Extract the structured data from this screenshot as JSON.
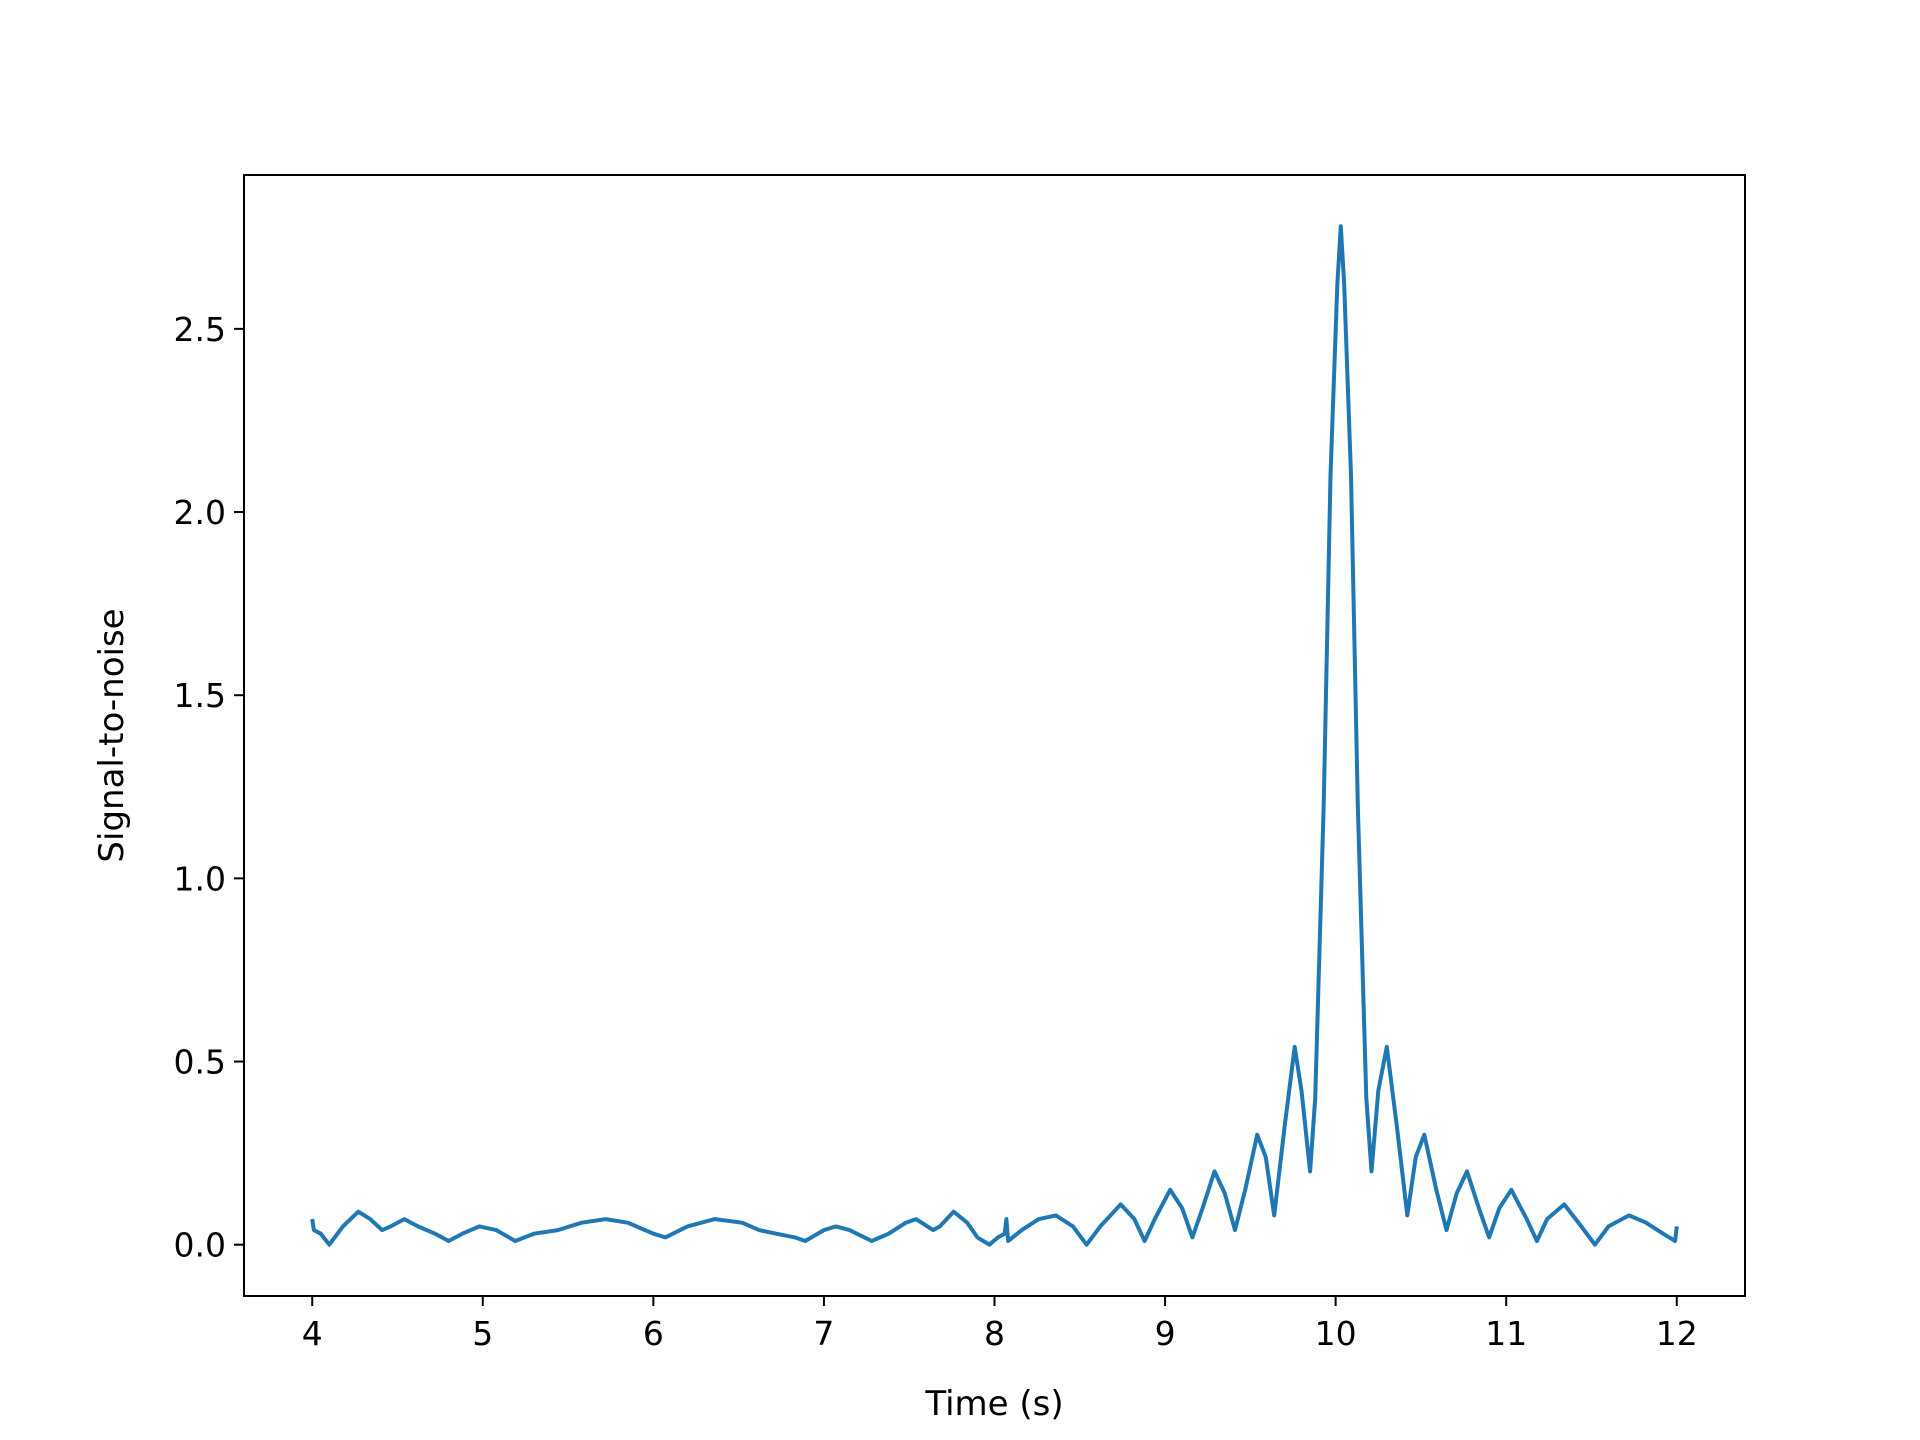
{
  "chart_data": {
    "type": "line",
    "title": "",
    "xlabel": "Time (s)",
    "ylabel": "Signal-to-noise",
    "xlim": [
      3.6,
      12.4
    ],
    "ylim": [
      -0.14,
      2.92
    ],
    "xticks": [
      4,
      5,
      6,
      7,
      8,
      9,
      10,
      11,
      12
    ],
    "xtick_labels": [
      "4",
      "5",
      "6",
      "7",
      "8",
      "9",
      "10",
      "11",
      "12"
    ],
    "yticks": [
      0.0,
      0.5,
      1.0,
      1.5,
      2.0,
      2.5
    ],
    "ytick_labels": [
      "0.0",
      "0.5",
      "1.0",
      "1.5",
      "2.0",
      "2.5"
    ],
    "grid": false,
    "legend": "none",
    "colors": {
      "line": "#1f77b4",
      "axes": "#000000",
      "background": "#ffffff"
    },
    "series": [
      {
        "points": [
          [
            4.0,
            0.07
          ],
          [
            4.01,
            0.04
          ],
          [
            4.05,
            0.03
          ],
          [
            4.1,
            0.0
          ],
          [
            4.18,
            0.05
          ],
          [
            4.27,
            0.09
          ],
          [
            4.34,
            0.07
          ],
          [
            4.41,
            0.04
          ],
          [
            4.46,
            0.05
          ],
          [
            4.54,
            0.07
          ],
          [
            4.62,
            0.05
          ],
          [
            4.72,
            0.03
          ],
          [
            4.8,
            0.01
          ],
          [
            4.88,
            0.03
          ],
          [
            4.98,
            0.05
          ],
          [
            5.08,
            0.04
          ],
          [
            5.19,
            0.01
          ],
          [
            5.3,
            0.03
          ],
          [
            5.44,
            0.04
          ],
          [
            5.58,
            0.06
          ],
          [
            5.72,
            0.07
          ],
          [
            5.85,
            0.06
          ],
          [
            6.0,
            0.03
          ],
          [
            6.07,
            0.02
          ],
          [
            6.2,
            0.05
          ],
          [
            6.36,
            0.07
          ],
          [
            6.52,
            0.06
          ],
          [
            6.62,
            0.04
          ],
          [
            6.72,
            0.03
          ],
          [
            6.83,
            0.02
          ],
          [
            6.89,
            0.01
          ],
          [
            7.0,
            0.04
          ],
          [
            7.07,
            0.05
          ],
          [
            7.15,
            0.04
          ],
          [
            7.28,
            0.01
          ],
          [
            7.38,
            0.03
          ],
          [
            7.48,
            0.06
          ],
          [
            7.54,
            0.07
          ],
          [
            7.64,
            0.04
          ],
          [
            7.68,
            0.05
          ],
          [
            7.76,
            0.09
          ],
          [
            7.84,
            0.06
          ],
          [
            7.9,
            0.02
          ],
          [
            7.97,
            0.0
          ],
          [
            8.02,
            0.02
          ],
          [
            8.06,
            0.03
          ],
          [
            8.07,
            0.07
          ],
          [
            8.08,
            0.01
          ],
          [
            8.16,
            0.04
          ],
          [
            8.26,
            0.07
          ],
          [
            8.36,
            0.08
          ],
          [
            8.46,
            0.05
          ],
          [
            8.54,
            0.0
          ],
          [
            8.62,
            0.05
          ],
          [
            8.74,
            0.11
          ],
          [
            8.82,
            0.07
          ],
          [
            8.88,
            0.01
          ],
          [
            8.94,
            0.07
          ],
          [
            9.03,
            0.15
          ],
          [
            9.1,
            0.1
          ],
          [
            9.16,
            0.02
          ],
          [
            9.22,
            0.1
          ],
          [
            9.29,
            0.2
          ],
          [
            9.35,
            0.14
          ],
          [
            9.41,
            0.04
          ],
          [
            9.47,
            0.15
          ],
          [
            9.54,
            0.3
          ],
          [
            9.59,
            0.24
          ],
          [
            9.64,
            0.08
          ],
          [
            9.7,
            0.32
          ],
          [
            9.76,
            0.54
          ],
          [
            9.8,
            0.42
          ],
          [
            9.85,
            0.2
          ],
          [
            9.88,
            0.4
          ],
          [
            9.93,
            1.2
          ],
          [
            9.97,
            2.1
          ],
          [
            10.01,
            2.62
          ],
          [
            10.03,
            2.78
          ],
          [
            10.05,
            2.62
          ],
          [
            10.09,
            2.1
          ],
          [
            10.13,
            1.2
          ],
          [
            10.18,
            0.4
          ],
          [
            10.21,
            0.2
          ],
          [
            10.25,
            0.42
          ],
          [
            10.3,
            0.54
          ],
          [
            10.36,
            0.32
          ],
          [
            10.42,
            0.08
          ],
          [
            10.47,
            0.24
          ],
          [
            10.52,
            0.3
          ],
          [
            10.59,
            0.15
          ],
          [
            10.65,
            0.04
          ],
          [
            10.71,
            0.14
          ],
          [
            10.77,
            0.2
          ],
          [
            10.84,
            0.1
          ],
          [
            10.9,
            0.02
          ],
          [
            10.96,
            0.1
          ],
          [
            11.03,
            0.15
          ],
          [
            11.12,
            0.07
          ],
          [
            11.18,
            0.01
          ],
          [
            11.24,
            0.07
          ],
          [
            11.34,
            0.11
          ],
          [
            11.44,
            0.05
          ],
          [
            11.52,
            0.0
          ],
          [
            11.6,
            0.05
          ],
          [
            11.72,
            0.08
          ],
          [
            11.82,
            0.06
          ],
          [
            11.92,
            0.03
          ],
          [
            11.99,
            0.01
          ],
          [
            12.0,
            0.05
          ]
        ]
      }
    ]
  }
}
